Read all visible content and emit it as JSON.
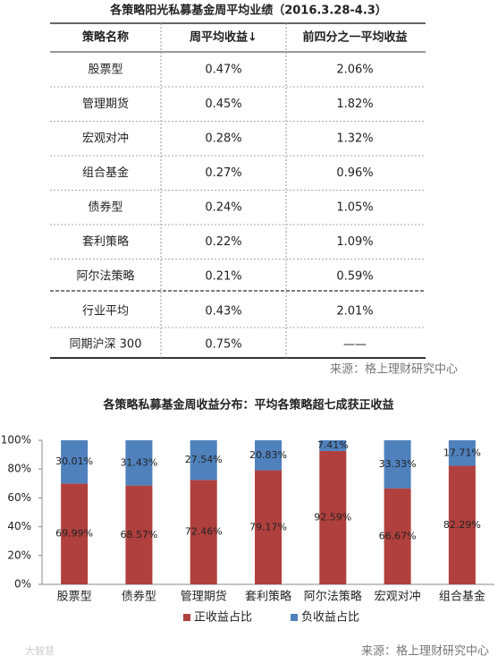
{
  "table": {
    "title": "各策略阳光私募基金周平均业绩（2016.3.28-4.3）",
    "header": [
      "策略名称",
      "周平均收益↓",
      "前四分之一平均收益"
    ],
    "rows": [
      [
        "股票型",
        "0.47%",
        "2.06%"
      ],
      [
        "管理期货",
        "0.45%",
        "1.82%"
      ],
      [
        "宏观对冲",
        "0.28%",
        "1.32%"
      ],
      [
        "组合基金",
        "0.27%",
        "0.96%"
      ],
      [
        "债券型",
        "0.24%",
        "1.05%"
      ],
      [
        "套利策略",
        "0.22%",
        "1.09%"
      ],
      [
        "阿尔法策略",
        "0.21%",
        "0.59%"
      ]
    ],
    "summary_rows": [
      [
        "行业平均",
        "0.43%",
        "2.01%"
      ],
      [
        "同期沪深 300",
        "0.75%",
        "——"
      ]
    ],
    "source": "来源：格上理财研究中心"
  },
  "chart_data": {
    "type": "stacked_bar",
    "title": "各策略私募基金周收益分布：平均各策略超七成获正收益",
    "categories": [
      "股票型",
      "债券型",
      "管理期货",
      "套利策略",
      "阿尔法策略",
      "宏观对冲",
      "组合基金"
    ],
    "series": [
      {
        "name": "正收益占比",
        "color": "#b0403d",
        "values": [
          69.99,
          68.57,
          72.46,
          79.17,
          92.59,
          66.67,
          82.29
        ],
        "value_labels": [
          "69.99%",
          "68.57%",
          "72.46%",
          "79.17%",
          "92.59%",
          "66.67%",
          "82.29%"
        ]
      },
      {
        "name": "负收益占比",
        "color": "#4f81bd",
        "values": [
          30.01,
          31.43,
          27.54,
          20.83,
          7.41,
          33.33,
          17.71
        ],
        "value_labels": [
          "30.01%",
          "31.43%",
          "27.54%",
          "20.83%",
          "7.41%",
          "33.33%",
          "17.71%"
        ]
      }
    ],
    "ylim": [
      0,
      100
    ],
    "yticks": [
      {
        "value": 0,
        "label": "0%"
      },
      {
        "value": 20,
        "label": "20%"
      },
      {
        "value": 40,
        "label": "40%"
      },
      {
        "value": 60,
        "label": "60%"
      },
      {
        "value": 80,
        "label": "80%"
      },
      {
        "value": 100,
        "label": "100%"
      }
    ],
    "legend": "bottom"
  },
  "source": "来源：格上理财研究中心",
  "watermark": "大智慧"
}
